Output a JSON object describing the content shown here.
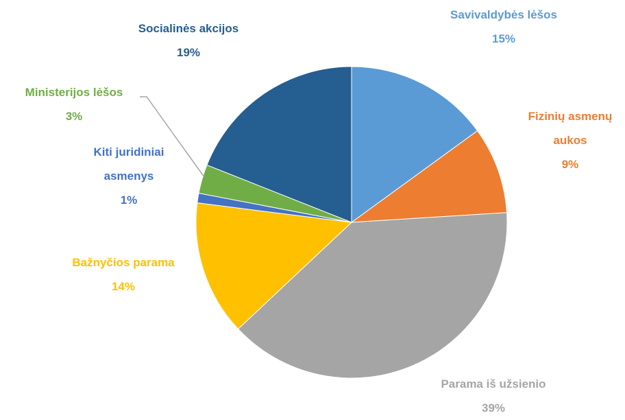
{
  "chart_data": {
    "type": "pie",
    "categories": [
      "Savivaldybės lėšos",
      "Fizinių asmenų aukos",
      "Parama iš užsienio",
      "Bažnyčios parama",
      "Kiti juridiniai asmenys",
      "Ministerijos lėšos",
      "Socialinės akcijos"
    ],
    "values": [
      15,
      9,
      39,
      14,
      1,
      3,
      19
    ],
    "value_labels": [
      "15%",
      "9%",
      "39%",
      "14%",
      "1%",
      "3%",
      "19%"
    ],
    "colors": [
      "#5b9bd5",
      "#ed7d31",
      "#a5a5a5",
      "#ffc000",
      "#4472c4",
      "#70ad47",
      "#255e91"
    ]
  }
}
